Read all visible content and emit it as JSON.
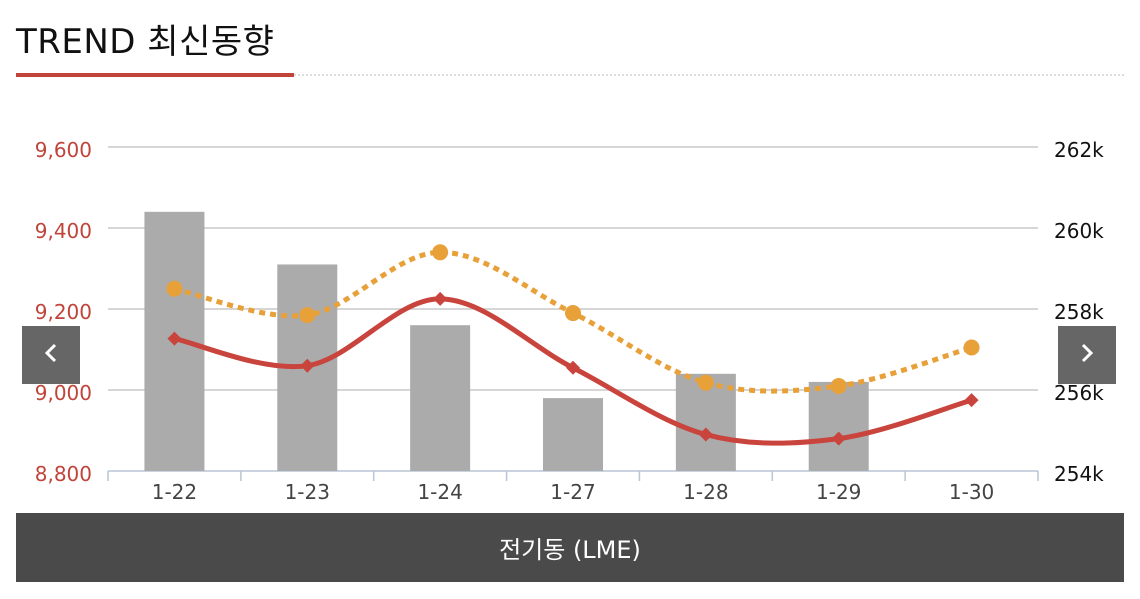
{
  "header": {
    "title": "TREND 최신동향"
  },
  "nav": {
    "prev_icon": "chevron-left-icon",
    "next_icon": "chevron-right-icon"
  },
  "footer": {
    "label": "전기동 (LME)"
  },
  "colors": {
    "accent": "#c0443a",
    "bar": "#ababab",
    "dotted_line": "#e8a039",
    "solid_line": "#c9443c",
    "left_axis_text": "#c0443a"
  },
  "chart_data": {
    "type": "bar",
    "categories": [
      "1-22",
      "1-23",
      "1-24",
      "1-27",
      "1-28",
      "1-29",
      "1-30"
    ],
    "left_axis": {
      "ticks": [
        "9,600",
        "9,400",
        "9,200",
        "9,000",
        "8,800"
      ],
      "ylim": [
        8800,
        9600
      ]
    },
    "right_axis": {
      "ticks": [
        "262k",
        "260k",
        "258k",
        "256k",
        "254k"
      ],
      "ylim": [
        254000,
        262000
      ]
    },
    "series": [
      {
        "type": "bar",
        "axis": "right",
        "values": [
          260400,
          259100,
          257600,
          255800,
          256400,
          256200,
          null
        ]
      },
      {
        "type": "line",
        "style": "dotted",
        "axis": "left",
        "values": [
          9250,
          9185,
          9340,
          9190,
          9018,
          9010,
          9105
        ]
      },
      {
        "type": "line",
        "style": "solid",
        "axis": "left",
        "values": [
          9127,
          9060,
          9225,
          9055,
          8890,
          8880,
          8975
        ]
      }
    ],
    "grid": true
  }
}
